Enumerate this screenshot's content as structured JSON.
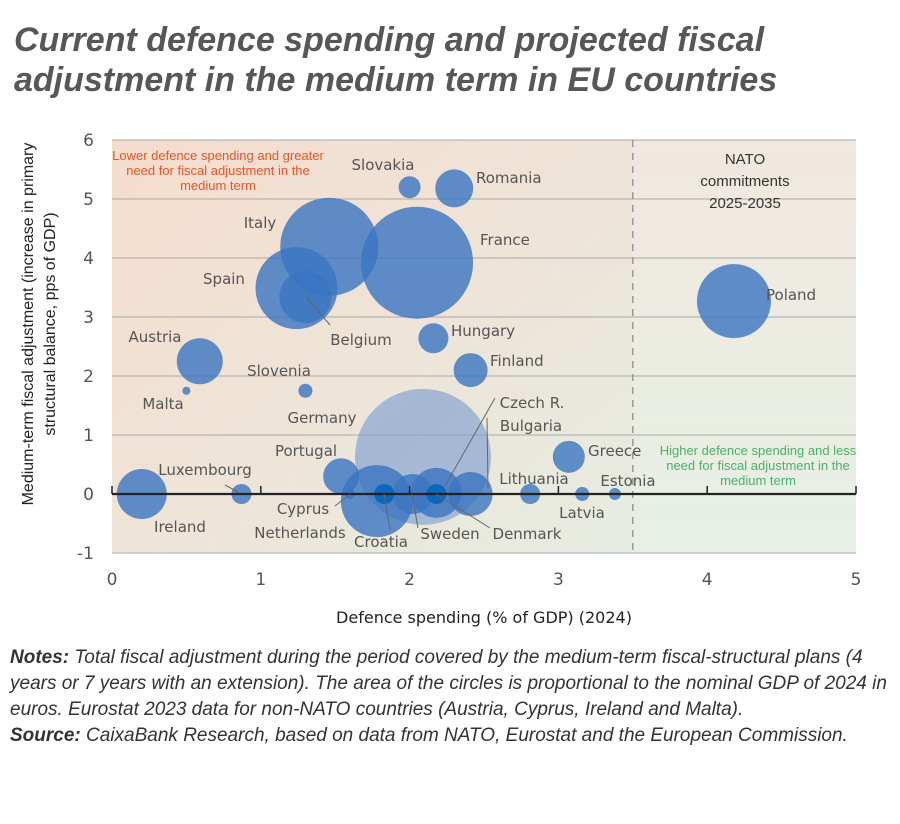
{
  "title": "Current defence spending and projected fiscal adjustment in the medium term in EU countries",
  "notes": {
    "label": "Notes:",
    "text": " Total fiscal adjustment during the period covered by the medium-term fiscal-structural plans (4 years or 7 years with an extension). The area of the circles is proportional to the nominal GDP of 2024 in euros. Eurostat 2023 data for non-NATO countries (Austria, Cyprus, Ireland and Malta)."
  },
  "source": {
    "label": "Source:",
    "text": " CaixaBank Research, based on data from NATO, Eurostat and the European Commission."
  },
  "chart_data": {
    "type": "scatter",
    "subtype": "bubble",
    "xlabel": "Defence spending (% of GDP) (2024)",
    "ylabel": "Medium-term fiscal adjustment (increase in primary structural balance, pps of GDP)",
    "xlim": [
      0,
      5
    ],
    "ylim": [
      -1,
      6
    ],
    "xticks": [
      "0",
      "1",
      "2",
      "3",
      "4",
      "5"
    ],
    "yticks": [
      "-1",
      "0",
      "1",
      "2",
      "3",
      "4",
      "5",
      "6"
    ],
    "grid": true,
    "reference_line": {
      "x": 3.5,
      "style": "dashed",
      "label": "NATO commitments 2025-2035"
    },
    "annotations": {
      "top_left": "Lower defence spending and greater need for fiscal adjustment in the medium term",
      "bottom_right": "Higher defence spending and less need for fiscal adjustment in the medium term"
    },
    "colors": {
      "bubble": "#3a74c0",
      "bubble_dark": "#0a65b8",
      "bubble_light": "#7f9fd0",
      "top_left_text": "#e8562a",
      "bottom_right_text": "#4caf6a"
    },
    "points": [
      {
        "name": "Germany",
        "x": 2.09,
        "y": 0.63,
        "size": 68,
        "light": true
      },
      {
        "name": "France",
        "x": 2.05,
        "y": 3.92,
        "size": 56
      },
      {
        "name": "Italy",
        "x": 1.46,
        "y": 4.19,
        "size": 49
      },
      {
        "name": "Spain",
        "x": 1.24,
        "y": 3.49,
        "size": 41
      },
      {
        "name": "Netherlands",
        "x": 1.78,
        "y": -0.12,
        "size": 36
      },
      {
        "name": "Poland",
        "x": 4.18,
        "y": 3.27,
        "size": 37
      },
      {
        "name": "Belgium",
        "x": 1.3,
        "y": 3.34,
        "size": 26
      },
      {
        "name": "Sweden",
        "x": 2.02,
        "y": 0,
        "size": 20
      },
      {
        "name": "Czech R.",
        "x": 2.18,
        "y": 0.02,
        "size": 25
      },
      {
        "name": "Bulgaria",
        "x": 2.41,
        "y": 0,
        "size": 22
      },
      {
        "name": "Ireland",
        "x": 0.2,
        "y": 0,
        "size": 25
      },
      {
        "name": "Austria",
        "x": 0.59,
        "y": 2.25,
        "size": 23
      },
      {
        "name": "Romania",
        "x": 2.3,
        "y": 5.18,
        "size": 19
      },
      {
        "name": "Portugal",
        "x": 1.54,
        "y": 0.3,
        "size": 18
      },
      {
        "name": "Finland",
        "x": 2.41,
        "y": 2.1,
        "size": 17
      },
      {
        "name": "Greece",
        "x": 3.07,
        "y": 0.63,
        "size": 16
      },
      {
        "name": "Hungary",
        "x": 2.16,
        "y": 2.64,
        "size": 15
      },
      {
        "name": "Slovakia",
        "x": 2.0,
        "y": 5.2,
        "size": 11
      },
      {
        "name": "Denmark",
        "x": 2.18,
        "y": 0,
        "size": 10,
        "dark": true
      },
      {
        "name": "Croatia",
        "x": 1.83,
        "y": 0,
        "size": 10,
        "dark": true
      },
      {
        "name": "Lithuania",
        "x": 2.81,
        "y": 0,
        "size": 10
      },
      {
        "name": "Luxembourg",
        "x": 0.87,
        "y": 0,
        "size": 10
      },
      {
        "name": "Slovenia",
        "x": 1.3,
        "y": 1.75,
        "size": 7
      },
      {
        "name": "Latvia",
        "x": 3.16,
        "y": 0,
        "size": 7
      },
      {
        "name": "Estonia",
        "x": 3.38,
        "y": 0,
        "size": 6
      },
      {
        "name": "Cyprus",
        "x": 1.6,
        "y": 0,
        "size": 5
      },
      {
        "name": "Malta",
        "x": 0.5,
        "y": 1.75,
        "size": 4
      }
    ]
  }
}
